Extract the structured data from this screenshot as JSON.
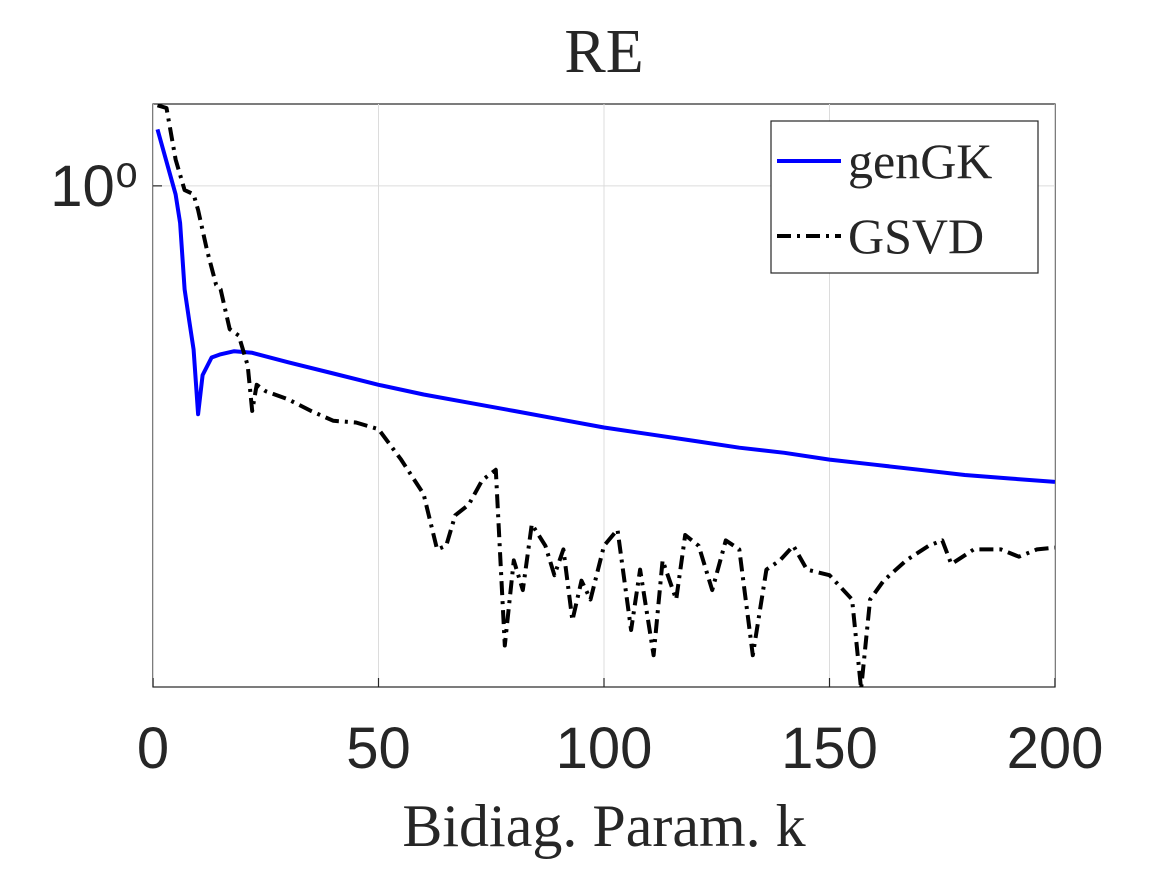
{
  "chart_data": {
    "type": "line",
    "title": "RE",
    "xlabel": "Bidiag. Param. k",
    "xlim": [
      0,
      200
    ],
    "xticks": [
      0,
      50,
      100,
      150,
      200
    ],
    "ylim": [
      0.7,
      1.06
    ],
    "yscale": "log",
    "yticks": [
      {
        "value": 1,
        "label": "10⁰"
      }
    ],
    "grid": true,
    "legend": "upper right",
    "series": [
      {
        "name": "genGK",
        "color": "#0000ff",
        "dash": "solid",
        "x": [
          1,
          5,
          6,
          7,
          8,
          9,
          10,
          11,
          13,
          15,
          18,
          22,
          30,
          40,
          50,
          60,
          70,
          80,
          90,
          100,
          110,
          120,
          130,
          140,
          150,
          160,
          170,
          180,
          190,
          200
        ],
        "values": [
          1.041,
          0.994,
          0.974,
          0.929,
          0.909,
          0.89,
          0.85,
          0.874,
          0.885,
          0.887,
          0.889,
          0.888,
          0.882,
          0.875,
          0.868,
          0.862,
          0.857,
          0.852,
          0.847,
          0.842,
          0.838,
          0.834,
          0.83,
          0.827,
          0.823,
          0.82,
          0.817,
          0.814,
          0.812,
          0.81
        ]
      },
      {
        "name": "GSVD",
        "color": "#000000",
        "dash": "dashdot",
        "x": [
          1,
          3,
          5,
          7,
          9,
          10,
          12,
          14,
          15,
          17,
          19,
          21,
          22,
          23,
          25,
          30,
          35,
          40,
          45,
          50,
          55,
          60,
          63,
          65,
          67,
          70,
          73,
          76,
          78,
          80,
          82,
          84,
          87,
          89,
          91,
          93,
          95,
          97,
          100,
          103,
          106,
          108,
          111,
          113,
          116,
          118,
          121,
          124,
          127,
          130,
          133,
          136,
          139,
          142,
          145,
          150,
          155,
          157,
          159,
          162,
          167,
          172,
          175,
          177,
          182,
          188,
          192,
          196,
          200
        ],
        "values": [
          1.059,
          1.057,
          1.019,
          0.997,
          0.994,
          0.983,
          0.955,
          0.932,
          0.929,
          0.903,
          0.899,
          0.88,
          0.852,
          0.868,
          0.864,
          0.859,
          0.852,
          0.846,
          0.845,
          0.841,
          0.823,
          0.803,
          0.772,
          0.774,
          0.791,
          0.797,
          0.811,
          0.817,
          0.721,
          0.766,
          0.75,
          0.786,
          0.774,
          0.758,
          0.772,
          0.734,
          0.755,
          0.745,
          0.774,
          0.783,
          0.729,
          0.761,
          0.716,
          0.766,
          0.745,
          0.78,
          0.774,
          0.75,
          0.777,
          0.772,
          0.716,
          0.761,
          0.766,
          0.774,
          0.761,
          0.758,
          0.745,
          0.699,
          0.745,
          0.755,
          0.766,
          0.774,
          0.777,
          0.764,
          0.772,
          0.772,
          0.768,
          0.772,
          0.773
        ]
      }
    ]
  }
}
